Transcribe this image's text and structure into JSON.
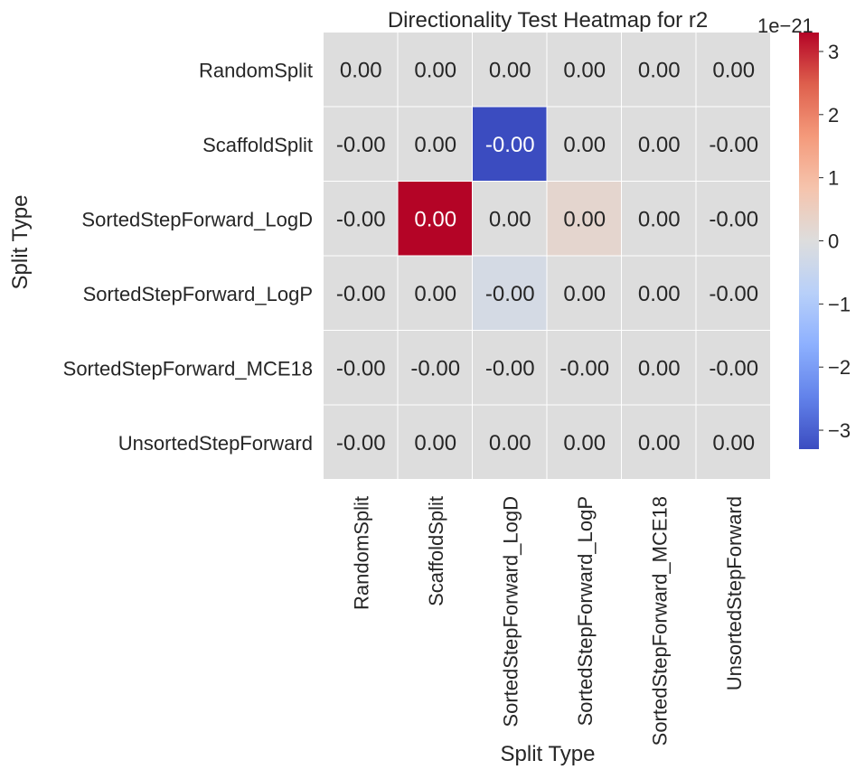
{
  "chart_data": {
    "type": "heatmap",
    "title": "Directionality Test Heatmap for r2",
    "xlabel": "Split Type",
    "ylabel": "Split Type",
    "rows": [
      "RandomSplit",
      "ScaffoldSplit",
      "SortedStepForward_LogD",
      "SortedStepForward_LogP",
      "SortedStepForward_MCE18",
      "UnsortedStepForward"
    ],
    "cols": [
      "RandomSplit",
      "ScaffoldSplit",
      "SortedStepForward_LogD",
      "SortedStepForward_LogP",
      "SortedStepForward_MCE18",
      "UnsortedStepForward"
    ],
    "values": [
      [
        0,
        0,
        0,
        0,
        0,
        0
      ],
      [
        0,
        0,
        -3.3,
        0,
        0,
        0
      ],
      [
        0,
        3.3,
        0,
        0.25,
        0,
        0
      ],
      [
        0,
        0,
        -0.2,
        0,
        0,
        0
      ],
      [
        0,
        0,
        0,
        0,
        0,
        0
      ],
      [
        0,
        0,
        0,
        0,
        0,
        0
      ]
    ],
    "annotations": [
      [
        "0.00",
        "0.00",
        "0.00",
        "0.00",
        "0.00",
        "0.00"
      ],
      [
        "-0.00",
        "0.00",
        "-0.00",
        "0.00",
        "0.00",
        "-0.00"
      ],
      [
        "-0.00",
        "0.00",
        "0.00",
        "0.00",
        "0.00",
        "-0.00"
      ],
      [
        "-0.00",
        "0.00",
        "-0.00",
        "0.00",
        "0.00",
        "-0.00"
      ],
      [
        "-0.00",
        "-0.00",
        "-0.00",
        "-0.00",
        "0.00",
        "-0.00"
      ],
      [
        "-0.00",
        "0.00",
        "0.00",
        "0.00",
        "0.00",
        "0.00"
      ]
    ],
    "colormap": "coolwarm",
    "vmin": -3.3,
    "vmax": 3.3,
    "colorbar": {
      "ticks": [
        -3,
        -2,
        -1,
        0,
        1,
        2,
        3
      ],
      "tick_labels": [
        "−3",
        "−2",
        "−1",
        "0",
        "1",
        "2",
        "3"
      ],
      "scale_label": "1e−21"
    },
    "grid_line_color": "#ffffff"
  }
}
